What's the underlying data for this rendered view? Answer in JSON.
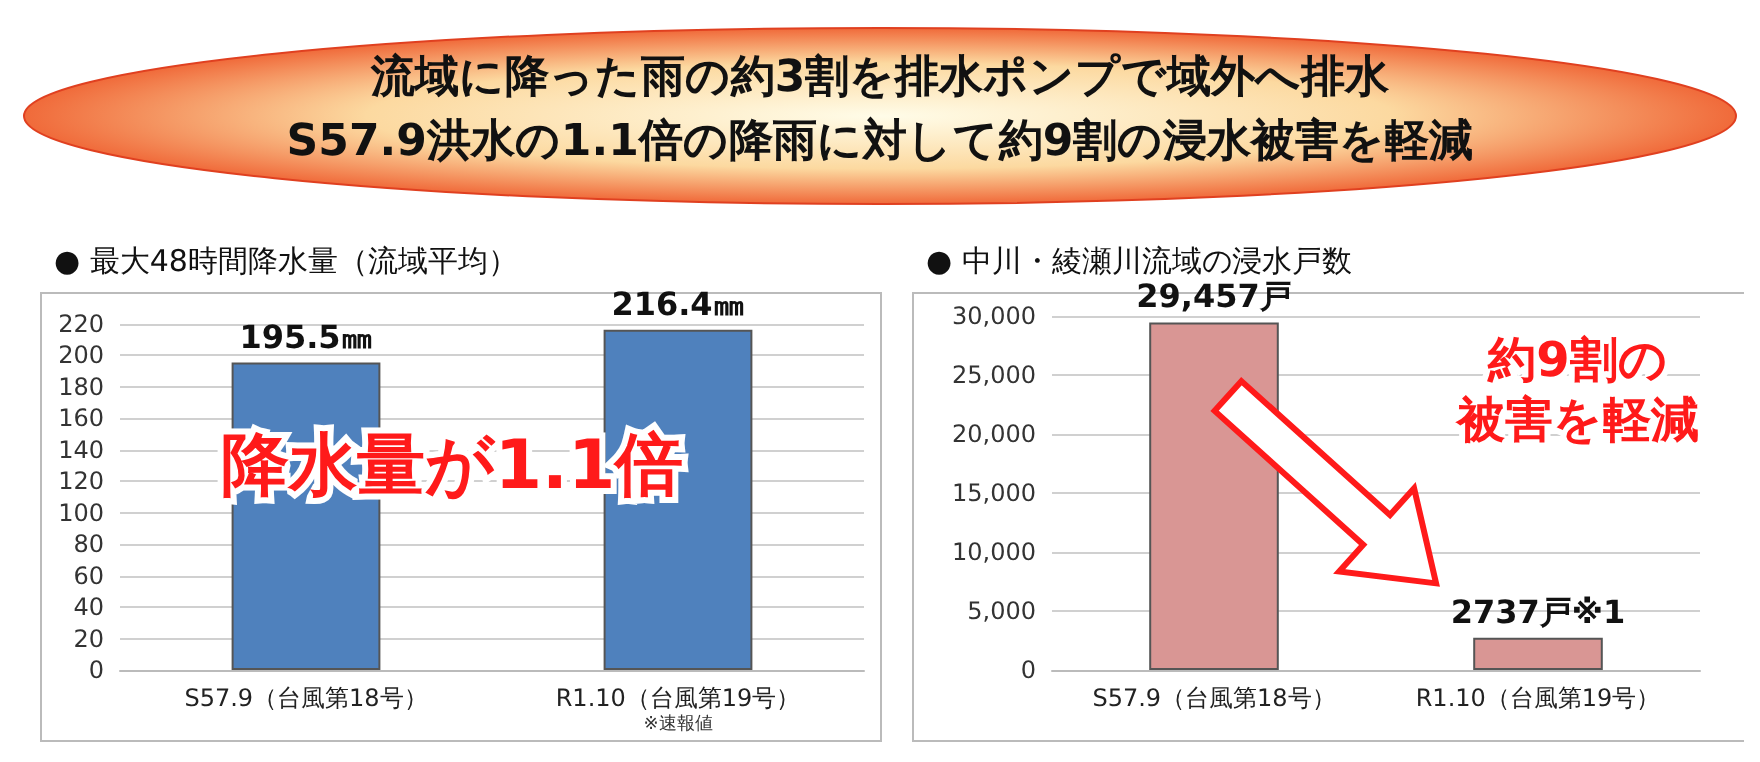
{
  "chart_data": [
    {
      "type": "other",
      "title": "流域に降った雨の約3割を排水ポンプで域外へ排水",
      "subtitle": "S57.9洪水の1.1倍の降雨に対して約9割の浸水被害を軽減"
    },
    {
      "type": "bar",
      "title": "● 最大48時間降水量（流域平均）",
      "categories": [
        "S57.9（台風第18号）",
        "R1.10（台風第19号）"
      ],
      "values": [
        195.5,
        216.4
      ],
      "color": "#4f81bd",
      "value_labels": [
        "195.5㎜",
        "216.4㎜"
      ],
      "ylim": [
        0,
        220
      ],
      "yticks": [
        0,
        20,
        40,
        60,
        80,
        100,
        120,
        140,
        160,
        180,
        200,
        220
      ],
      "grid": "y",
      "annotations": [
        "降水量が1.1倍",
        "※速報値"
      ]
    },
    {
      "type": "bar",
      "title": "● 中川・綾瀬川流域の浸水戸数",
      "categories": [
        "S57.9（台風第18号）",
        "R1.10（台風第19号）"
      ],
      "values": [
        29457,
        2737
      ],
      "color": "#d99694",
      "value_labels": [
        "29,457戸",
        "2737戸※1"
      ],
      "ylim": [
        0,
        30000
      ],
      "yticks": [
        0,
        {
          "value": 5000,
          "label": "5,000"
        },
        {
          "value": 10000,
          "label": "10,000"
        },
        {
          "value": 15000,
          "label": "15,000"
        },
        {
          "value": 20000,
          "label": "20,000"
        },
        {
          "value": 25000,
          "label": "25,000"
        },
        {
          "value": 30000,
          "label": "30,000"
        }
      ],
      "grid": "y",
      "annotations": [
        "約9割の",
        "被害を軽減"
      ]
    }
  ]
}
